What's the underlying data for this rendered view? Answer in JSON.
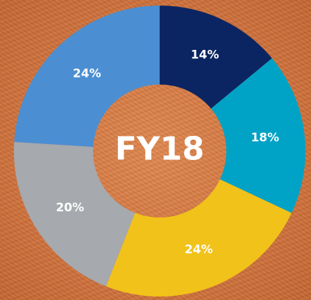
{
  "chart_data": {
    "type": "donut",
    "title": "FY18",
    "values": [
      14,
      18,
      24,
      20,
      24
    ],
    "value_labels": [
      "14%",
      "18%",
      "24%",
      "20%",
      "24%"
    ],
    "colors": [
      "#0b2562",
      "#00a3c6",
      "#f1c21a",
      "#a6a9ad",
      "#4b8fd2"
    ]
  }
}
